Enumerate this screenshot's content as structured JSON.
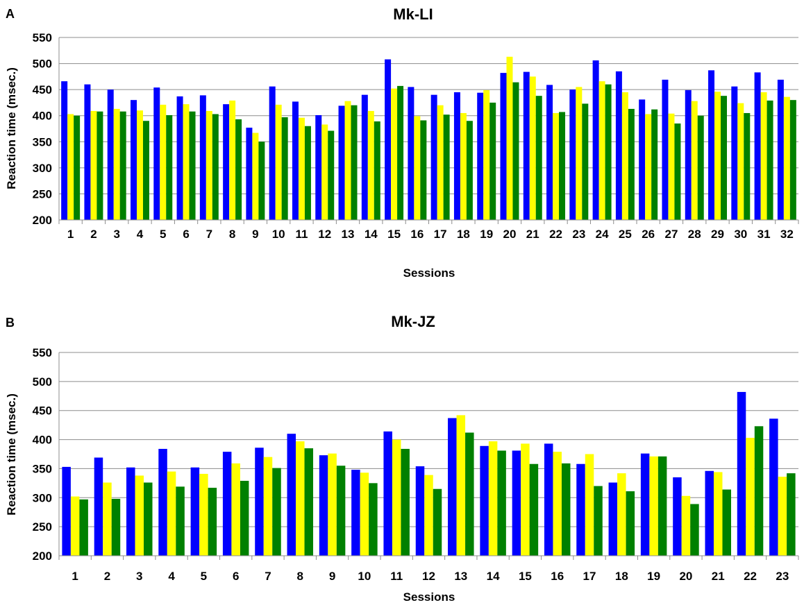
{
  "colors": {
    "series1": "#0000ff",
    "series2": "#ffff00",
    "series3": "#008000",
    "grid": "#8c8c8c",
    "text": "#000000"
  },
  "chart_data": [
    {
      "panel_label": "A",
      "type": "bar",
      "title": "Mk-LI",
      "xlabel": "Sessions",
      "ylabel": "Reaction time (msec.)",
      "ylim": [
        200,
        550
      ],
      "yticks": [
        200,
        250,
        300,
        350,
        400,
        450,
        500,
        550
      ],
      "grid": true,
      "categories": [
        "1",
        "2",
        "3",
        "4",
        "5",
        "6",
        "7",
        "8",
        "9",
        "10",
        "11",
        "12",
        "13",
        "14",
        "15",
        "16",
        "17",
        "18",
        "19",
        "20",
        "21",
        "22",
        "23",
        "24",
        "25",
        "26",
        "27",
        "28",
        "29",
        "30",
        "31",
        "32"
      ],
      "series": [
        {
          "color": "#0000ff",
          "values": [
            466,
            460,
            450,
            430,
            454,
            437,
            439,
            422,
            377,
            456,
            427,
            401,
            419,
            440,
            508,
            455,
            440,
            445,
            444,
            482,
            484,
            459,
            450,
            506,
            485,
            431,
            469,
            449,
            487,
            456,
            483,
            469
          ]
        },
        {
          "color": "#ffff00",
          "values": [
            403,
            409,
            413,
            410,
            421,
            422,
            409,
            429,
            367,
            421,
            396,
            383,
            428,
            409,
            452,
            399,
            420,
            405,
            449,
            513,
            475,
            405,
            455,
            466,
            445,
            403,
            404,
            428,
            446,
            424,
            445,
            436
          ]
        },
        {
          "color": "#008000",
          "values": [
            400,
            408,
            408,
            390,
            401,
            408,
            403,
            393,
            350,
            397,
            380,
            371,
            420,
            389,
            457,
            391,
            402,
            390,
            425,
            464,
            438,
            407,
            423,
            460,
            413,
            412,
            385,
            400,
            438,
            405,
            429,
            430
          ]
        }
      ]
    },
    {
      "panel_label": "B",
      "type": "bar",
      "title": "Mk-JZ",
      "xlabel": "Sessions",
      "ylabel": "Reaction time (msec.)",
      "ylim": [
        200,
        550
      ],
      "yticks": [
        200,
        250,
        300,
        350,
        400,
        450,
        500,
        550
      ],
      "grid": true,
      "categories": [
        "1",
        "2",
        "3",
        "4",
        "5",
        "6",
        "7",
        "8",
        "9",
        "10",
        "11",
        "12",
        "13",
        "14",
        "15",
        "16",
        "17",
        "18",
        "19",
        "20",
        "21",
        "22",
        "23"
      ],
      "series": [
        {
          "color": "#0000ff",
          "values": [
            353,
            369,
            352,
            384,
            352,
            379,
            386,
            410,
            373,
            348,
            414,
            354,
            437,
            389,
            381,
            393,
            358,
            326,
            376,
            335,
            346,
            482,
            436
          ]
        },
        {
          "color": "#ffff00",
          "values": [
            302,
            326,
            338,
            345,
            341,
            359,
            370,
            397,
            376,
            343,
            400,
            339,
            442,
            397,
            393,
            379,
            375,
            342,
            371,
            303,
            344,
            403,
            336
          ]
        },
        {
          "color": "#008000",
          "values": [
            297,
            298,
            326,
            319,
            317,
            329,
            351,
            385,
            355,
            325,
            384,
            315,
            412,
            381,
            358,
            359,
            320,
            311,
            371,
            289,
            314,
            423,
            342
          ]
        }
      ]
    }
  ]
}
